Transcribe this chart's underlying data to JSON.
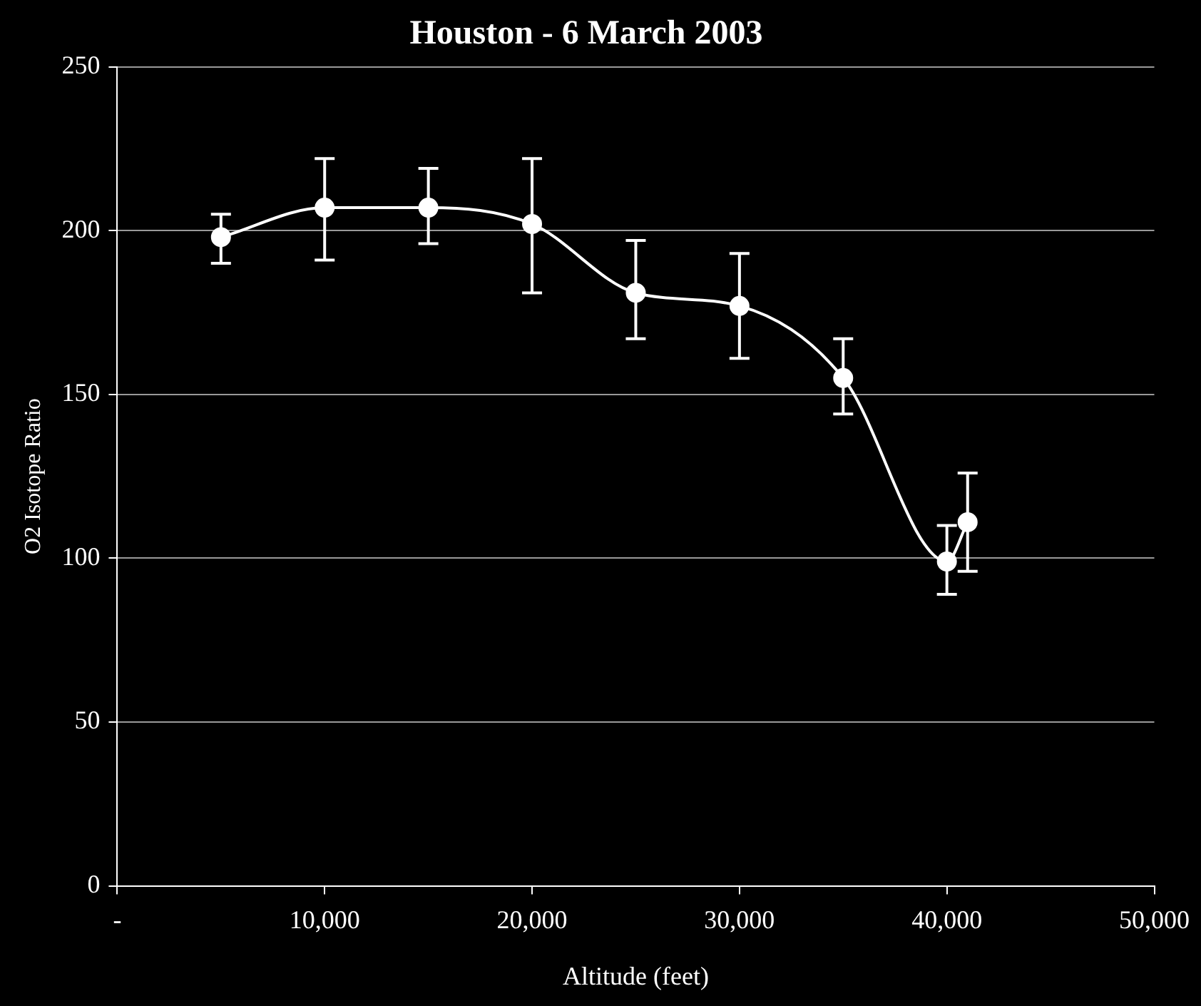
{
  "chart_data": {
    "type": "line",
    "title": "Houston - 6 March 2003",
    "xlabel": "Altitude (feet)",
    "ylabel": "O2 Isotope Ratio",
    "x": [
      5000,
      10000,
      15000,
      20000,
      25000,
      30000,
      35000,
      40000,
      41000
    ],
    "series": [
      {
        "color": "#ffffff",
        "values": [
          198,
          207,
          207,
          202,
          181,
          177,
          155,
          99,
          111
        ],
        "errors": [
          [
            190,
            205
          ],
          [
            191,
            222
          ],
          [
            196,
            219
          ],
          [
            181,
            222
          ],
          [
            167,
            197
          ],
          [
            161,
            193
          ],
          [
            144,
            167
          ],
          [
            89,
            110
          ],
          [
            96,
            126
          ]
        ]
      }
    ],
    "xlim": [
      0,
      50000
    ],
    "xticks": [
      {
        "value": 0,
        "label": "-"
      },
      {
        "value": 10000,
        "label": "10,000"
      },
      {
        "value": 20000,
        "label": "20,000"
      },
      {
        "value": 30000,
        "label": "30,000"
      },
      {
        "value": 40000,
        "label": "40,000"
      },
      {
        "value": 50000,
        "label": "50,000"
      }
    ],
    "ylim": [
      0,
      250
    ],
    "yticks": [
      0,
      50,
      100,
      150,
      200,
      250
    ],
    "grid": "y",
    "marker": "circle",
    "line_style": "solid",
    "legend": false
  }
}
